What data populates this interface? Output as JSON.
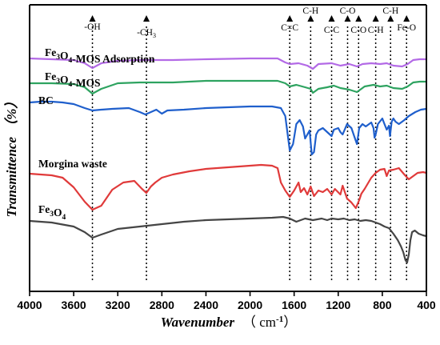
{
  "chart_data": {
    "type": "line",
    "x_axis": {
      "label": "Wavenumber",
      "unit_label": "（ cm",
      "unit_exp": "-1",
      "unit_close": "）",
      "min": 4000,
      "max": 400,
      "reversed": true,
      "ticks": [
        4000,
        3600,
        3200,
        2800,
        2400,
        2000,
        1600,
        1200,
        800,
        400
      ]
    },
    "y_axis": {
      "label": "Transmittence （%）",
      "ticks_shown": false
    },
    "grid": false,
    "series": [
      {
        "label_parts": [
          [
            "Fe",
            ""
          ],
          [
            "3",
            "sub"
          ],
          [
            "O",
            ""
          ],
          [
            "4",
            "sub"
          ],
          [
            "-MOS Adsorption",
            ""
          ]
        ],
        "color": "#b36ae6",
        "points": [
          [
            4000,
            73
          ],
          [
            3800,
            74
          ],
          [
            3600,
            75
          ],
          [
            3500,
            79
          ],
          [
            3430,
            85
          ],
          [
            3350,
            79
          ],
          [
            3200,
            76
          ],
          [
            3000,
            75
          ],
          [
            2700,
            75
          ],
          [
            2400,
            74
          ],
          [
            2000,
            73
          ],
          [
            1750,
            73
          ],
          [
            1680,
            78
          ],
          [
            1640,
            80
          ],
          [
            1560,
            79
          ],
          [
            1480,
            82
          ],
          [
            1430,
            86
          ],
          [
            1380,
            80
          ],
          [
            1260,
            79
          ],
          [
            1180,
            82
          ],
          [
            1100,
            80
          ],
          [
            1030,
            83
          ],
          [
            980,
            80
          ],
          [
            900,
            79
          ],
          [
            820,
            80
          ],
          [
            760,
            79
          ],
          [
            700,
            82
          ],
          [
            620,
            83
          ],
          [
            570,
            80
          ],
          [
            520,
            75
          ],
          [
            460,
            74
          ],
          [
            400,
            74
          ]
        ]
      },
      {
        "label_parts": [
          [
            "Fe",
            ""
          ],
          [
            "3",
            "sub"
          ],
          [
            "O",
            ""
          ],
          [
            "4",
            "sub"
          ],
          [
            "-MOS",
            ""
          ]
        ],
        "color": "#2ea360",
        "points": [
          [
            4000,
            104
          ],
          [
            3800,
            104
          ],
          [
            3600,
            105
          ],
          [
            3500,
            109
          ],
          [
            3430,
            117
          ],
          [
            3350,
            111
          ],
          [
            3200,
            104
          ],
          [
            3000,
            103
          ],
          [
            2700,
            103
          ],
          [
            2400,
            101
          ],
          [
            2000,
            101
          ],
          [
            1750,
            101
          ],
          [
            1680,
            104
          ],
          [
            1640,
            108
          ],
          [
            1580,
            106
          ],
          [
            1500,
            109
          ],
          [
            1450,
            111
          ],
          [
            1430,
            116
          ],
          [
            1380,
            111
          ],
          [
            1300,
            109
          ],
          [
            1240,
            107
          ],
          [
            1180,
            110
          ],
          [
            1100,
            112
          ],
          [
            1030,
            115
          ],
          [
            960,
            108
          ],
          [
            880,
            106
          ],
          [
            820,
            108
          ],
          [
            760,
            107
          ],
          [
            700,
            110
          ],
          [
            620,
            111
          ],
          [
            570,
            108
          ],
          [
            520,
            103
          ],
          [
            460,
            102
          ],
          [
            400,
            102
          ]
        ]
      },
      {
        "label_parts": [
          [
            "BC",
            ""
          ]
        ],
        "color": "#1f5fcc",
        "points": [
          [
            4000,
            128
          ],
          [
            3900,
            127
          ],
          [
            3800,
            127
          ],
          [
            3700,
            128
          ],
          [
            3600,
            130
          ],
          [
            3500,
            135
          ],
          [
            3430,
            138
          ],
          [
            3350,
            137
          ],
          [
            3250,
            136
          ],
          [
            3100,
            135
          ],
          [
            3000,
            140
          ],
          [
            2950,
            143
          ],
          [
            2900,
            140
          ],
          [
            2850,
            137
          ],
          [
            2800,
            142
          ],
          [
            2750,
            138
          ],
          [
            2600,
            137
          ],
          [
            2400,
            135
          ],
          [
            2200,
            134
          ],
          [
            2000,
            133
          ],
          [
            1900,
            133
          ],
          [
            1800,
            133
          ],
          [
            1720,
            135
          ],
          [
            1680,
            145
          ],
          [
            1640,
            188
          ],
          [
            1610,
            180
          ],
          [
            1580,
            155
          ],
          [
            1550,
            150
          ],
          [
            1520,
            158
          ],
          [
            1500,
            173
          ],
          [
            1460,
            163
          ],
          [
            1440,
            193
          ],
          [
            1420,
            190
          ],
          [
            1400,
            168
          ],
          [
            1380,
            163
          ],
          [
            1340,
            160
          ],
          [
            1300,
            165
          ],
          [
            1260,
            170
          ],
          [
            1240,
            162
          ],
          [
            1200,
            160
          ],
          [
            1180,
            165
          ],
          [
            1160,
            168
          ],
          [
            1120,
            155
          ],
          [
            1080,
            160
          ],
          [
            1050,
            172
          ],
          [
            1030,
            180
          ],
          [
            1010,
            160
          ],
          [
            980,
            155
          ],
          [
            950,
            158
          ],
          [
            900,
            153
          ],
          [
            880,
            160
          ],
          [
            870,
            172
          ],
          [
            860,
            168
          ],
          [
            840,
            155
          ],
          [
            800,
            148
          ],
          [
            780,
            155
          ],
          [
            760,
            162
          ],
          [
            740,
            157
          ],
          [
            730,
            170
          ],
          [
            715,
            152
          ],
          [
            700,
            148
          ],
          [
            680,
            152
          ],
          [
            650,
            155
          ],
          [
            600,
            150
          ],
          [
            560,
            145
          ],
          [
            500,
            140
          ],
          [
            450,
            137
          ],
          [
            400,
            136
          ]
        ]
      },
      {
        "label_parts": [
          [
            "Morgina waste",
            ""
          ]
        ],
        "color": "#e03a3a",
        "points": [
          [
            4000,
            217
          ],
          [
            3900,
            218
          ],
          [
            3800,
            219
          ],
          [
            3700,
            222
          ],
          [
            3600,
            234
          ],
          [
            3500,
            252
          ],
          [
            3430,
            262
          ],
          [
            3350,
            257
          ],
          [
            3250,
            237
          ],
          [
            3150,
            228
          ],
          [
            3050,
            226
          ],
          [
            2980,
            236
          ],
          [
            2940,
            241
          ],
          [
            2900,
            233
          ],
          [
            2860,
            228
          ],
          [
            2800,
            222
          ],
          [
            2700,
            218
          ],
          [
            2550,
            214
          ],
          [
            2400,
            211
          ],
          [
            2200,
            209
          ],
          [
            2000,
            207
          ],
          [
            1900,
            206
          ],
          [
            1800,
            207
          ],
          [
            1750,
            210
          ],
          [
            1720,
            228
          ],
          [
            1680,
            238
          ],
          [
            1640,
            246
          ],
          [
            1600,
            238
          ],
          [
            1560,
            228
          ],
          [
            1540,
            240
          ],
          [
            1510,
            235
          ],
          [
            1480,
            243
          ],
          [
            1450,
            233
          ],
          [
            1420,
            245
          ],
          [
            1380,
            238
          ],
          [
            1340,
            240
          ],
          [
            1300,
            236
          ],
          [
            1260,
            243
          ],
          [
            1230,
            236
          ],
          [
            1180,
            243
          ],
          [
            1160,
            232
          ],
          [
            1120,
            248
          ],
          [
            1080,
            253
          ],
          [
            1040,
            260
          ],
          [
            1010,
            250
          ],
          [
            990,
            242
          ],
          [
            960,
            236
          ],
          [
            900,
            222
          ],
          [
            860,
            216
          ],
          [
            820,
            212
          ],
          [
            780,
            211
          ],
          [
            760,
            220
          ],
          [
            740,
            213
          ],
          [
            700,
            212
          ],
          [
            650,
            210
          ],
          [
            600,
            218
          ],
          [
            560,
            224
          ],
          [
            520,
            220
          ],
          [
            480,
            216
          ],
          [
            430,
            215
          ],
          [
            400,
            216
          ]
        ]
      },
      {
        "label_parts": [
          [
            "Fe",
            ""
          ],
          [
            "3",
            "sub"
          ],
          [
            "O",
            ""
          ],
          [
            "4",
            "sub"
          ]
        ],
        "color": "#454545",
        "points": [
          [
            4000,
            276
          ],
          [
            3800,
            278
          ],
          [
            3600,
            283
          ],
          [
            3500,
            290
          ],
          [
            3430,
            297
          ],
          [
            3350,
            293
          ],
          [
            3200,
            286
          ],
          [
            3000,
            283
          ],
          [
            2800,
            280
          ],
          [
            2600,
            277
          ],
          [
            2400,
            275
          ],
          [
            2200,
            274
          ],
          [
            2000,
            273
          ],
          [
            1800,
            272
          ],
          [
            1700,
            271
          ],
          [
            1640,
            273
          ],
          [
            1580,
            277
          ],
          [
            1500,
            273
          ],
          [
            1430,
            275
          ],
          [
            1350,
            273
          ],
          [
            1300,
            275
          ],
          [
            1260,
            273
          ],
          [
            1200,
            274
          ],
          [
            1150,
            273
          ],
          [
            1100,
            275
          ],
          [
            1050,
            274
          ],
          [
            1000,
            276
          ],
          [
            950,
            275
          ],
          [
            900,
            276
          ],
          [
            860,
            278
          ],
          [
            820,
            280
          ],
          [
            780,
            283
          ],
          [
            740,
            285
          ],
          [
            700,
            292
          ],
          [
            660,
            300
          ],
          [
            630,
            308
          ],
          [
            610,
            315
          ],
          [
            590,
            325
          ],
          [
            575,
            328
          ],
          [
            560,
            318
          ],
          [
            545,
            300
          ],
          [
            530,
            290
          ],
          [
            505,
            288
          ],
          [
            470,
            292
          ],
          [
            430,
            294
          ],
          [
            400,
            295
          ]
        ]
      }
    ],
    "annotations": [
      {
        "wavenumber": 3430,
        "label_parts": [
          [
            "-OH",
            ""
          ]
        ]
      },
      {
        "wavenumber": 2940,
        "label_parts": [
          [
            "-CH",
            ""
          ],
          [
            "3",
            "sub"
          ]
        ]
      },
      {
        "wavenumber": 1640,
        "label_parts": [
          [
            "C=C",
            ""
          ]
        ]
      },
      {
        "wavenumber": 1450,
        "label_parts": [
          [
            "C-H",
            ""
          ]
        ]
      },
      {
        "wavenumber": 1260,
        "label_parts": [
          [
            "C-C",
            ""
          ]
        ]
      },
      {
        "wavenumber": 1115,
        "label_parts": [
          [
            "C-O",
            ""
          ]
        ]
      },
      {
        "wavenumber": 1015,
        "label_parts": [
          [
            "C-O",
            ""
          ]
        ]
      },
      {
        "wavenumber": 860,
        "label_parts": [
          [
            "C-H",
            ""
          ]
        ]
      },
      {
        "wavenumber": 725,
        "label_parts": [
          [
            "C-H",
            ""
          ]
        ]
      },
      {
        "wavenumber": 580,
        "label_parts": [
          [
            "Fe-O",
            ""
          ]
        ]
      }
    ]
  }
}
